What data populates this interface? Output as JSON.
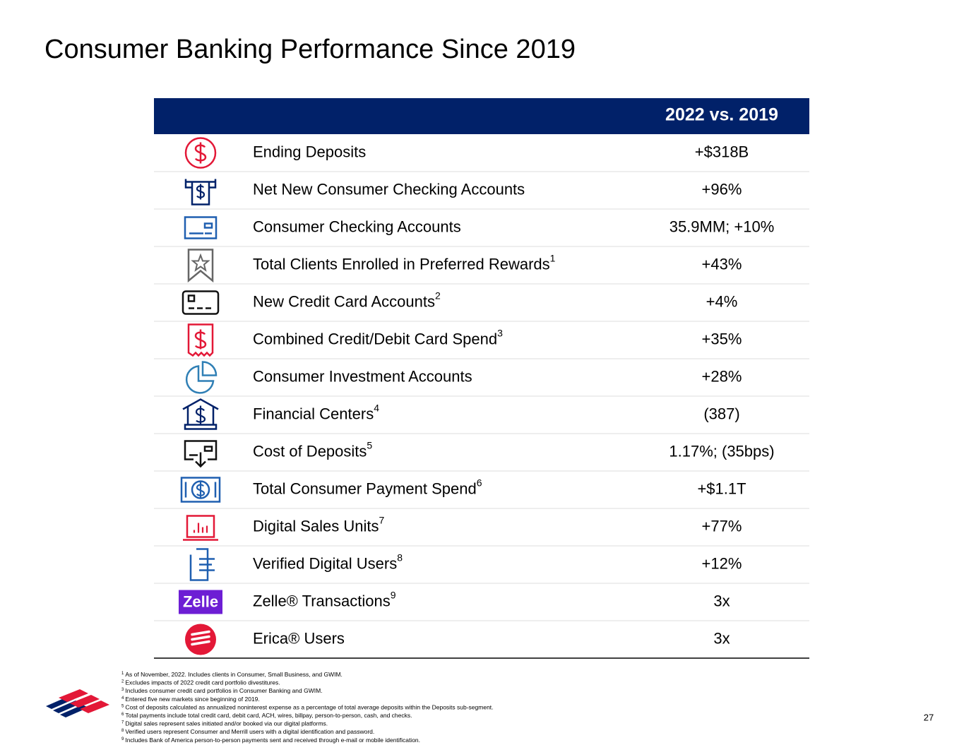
{
  "title": "Consumer Banking Performance Since 2019",
  "table": {
    "header": "2022 vs. 2019",
    "rows": [
      {
        "label": "Ending Deposits",
        "value": "+$318B"
      },
      {
        "label": "Net New Consumer Checking Accounts",
        "value": "+96%"
      },
      {
        "label": "Consumer Checking Accounts",
        "value": "35.9MM; +10%"
      },
      {
        "label": "Total Clients Enrolled in Preferred Rewards",
        "note": "1",
        "value": "+43%"
      },
      {
        "label": "New Credit Card Accounts",
        "note": "2",
        "value": "+4%"
      },
      {
        "label": "Combined Credit/Debit Card Spend",
        "note": "3",
        "value": "+35%"
      },
      {
        "label": "Consumer Investment Accounts",
        "value": "+28%"
      },
      {
        "label": "Financial Centers",
        "note": "4",
        "value": "(387)"
      },
      {
        "label": "Cost of Deposits",
        "note": "5",
        "value": "1.17%; (35bps)"
      },
      {
        "label": "Total Consumer Payment Spend",
        "note": "6",
        "value": "+$1.1T"
      },
      {
        "label": "Digital Sales Units",
        "note": "7",
        "value": "+77%"
      },
      {
        "label": "Verified Digital Users",
        "note": "8",
        "value": "+12%"
      },
      {
        "label": "Zelle® Transactions",
        "note": "9",
        "value": "3x",
        "logo": "Zelle"
      },
      {
        "label": "Erica® Users",
        "value": "3x"
      }
    ]
  },
  "footnotes": [
    {
      "mark": "1",
      "text": "As of November, 2022. Includes clients in Consumer, Small Business, and GWIM."
    },
    {
      "mark": "2",
      "text": "Excludes impacts of 2022 credit card portfolio divestitures."
    },
    {
      "mark": "3",
      "text": "Includes consumer credit card portfolios in Consumer Banking and GWIM."
    },
    {
      "mark": "4",
      "text": "Entered five new markets since beginning of 2019."
    },
    {
      "mark": "5",
      "text": "Cost of deposits calculated as annualized noninterest expense as a percentage of total average deposits within the Deposits sub-segment."
    },
    {
      "mark": "6",
      "text": "Total payments include total credit card, debit card, ACH, wires, billpay, person-to-person, cash, and checks."
    },
    {
      "mark": "7",
      "text": "Digital sales represent sales initiated and/or booked via our digital platforms."
    },
    {
      "mark": "8",
      "text": "Verified users represent Consumer and Merrill users with a digital identification and password."
    },
    {
      "mark": "9",
      "text": "Includes Bank of America person-to-person payments sent and received through e-mail or mobile identification."
    }
  ],
  "page_number": "27"
}
